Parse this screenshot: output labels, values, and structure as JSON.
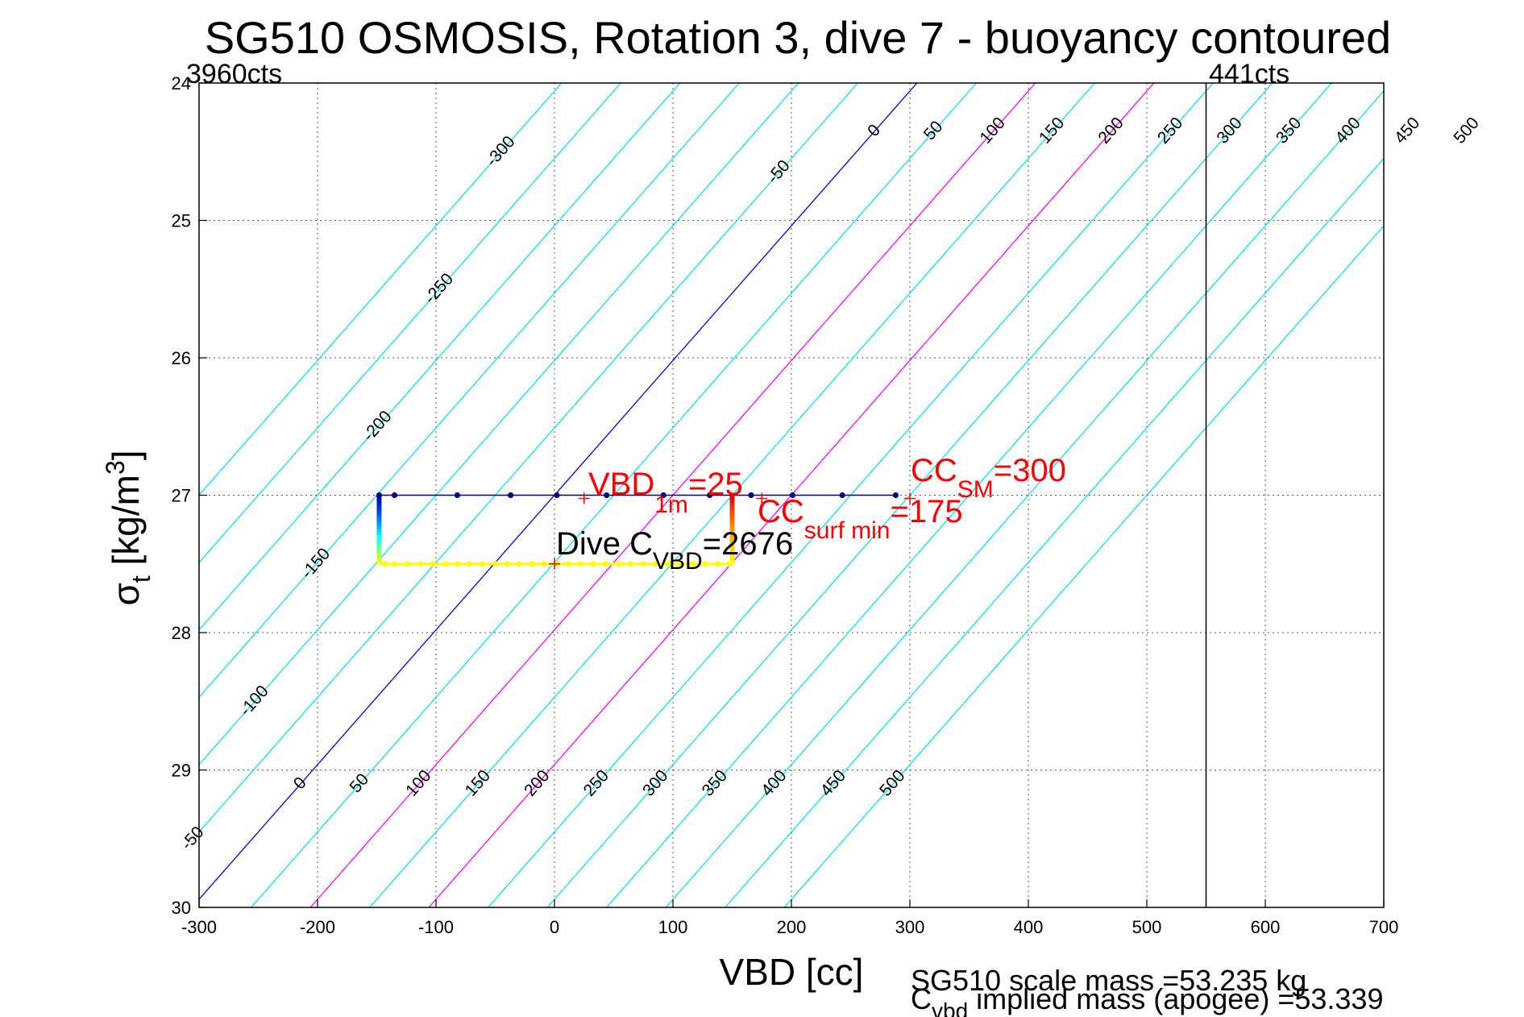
{
  "chart_data": {
    "type": "line",
    "title": "SG510 OSMOSIS, Rotation 3, dive 7 - buoyancy contoured",
    "xlabel": "VBD [cc]",
    "ylabel": "σt [kg/m3]",
    "ylabel_parts": {
      "symbol": "σ",
      "sub": "t",
      "unit_open": " [kg/m",
      "unit_sup": "3",
      "unit_close": "]"
    },
    "xlim": [
      -300,
      700
    ],
    "ylim": [
      24,
      30
    ],
    "y_reversed": true,
    "xticks": [
      -300,
      -200,
      -100,
      0,
      100,
      200,
      300,
      400,
      500,
      600,
      700
    ],
    "yticks": [
      24,
      25,
      26,
      27,
      28,
      29,
      30
    ],
    "grid": true,
    "corner_labels": {
      "left": "3960cts",
      "right": "441cts"
    },
    "vline_x": 550,
    "contour_levels": [
      -300,
      -250,
      -200,
      -150,
      -100,
      -50,
      0,
      50,
      100,
      150,
      200,
      250,
      300,
      350,
      400,
      450,
      500
    ],
    "contour_special": {
      "0": "#0000ff",
      "100": "#ff00ff",
      "200": "#ff00ff"
    },
    "contour_labels_top": [
      "-300",
      "-250",
      "-200",
      "-150",
      "-100",
      "-50",
      "0",
      "50",
      "100",
      "150",
      "200",
      "250",
      "300",
      "350",
      "400",
      "450",
      "500"
    ],
    "contour_labels_bottom": [
      "-50",
      "0",
      "50",
      "100",
      "150",
      "200",
      "250",
      "300",
      "350",
      "400",
      "450",
      "500"
    ],
    "dive_path": {
      "sigma_top": 27.0,
      "sigma_bottom": 27.5,
      "vbd_min": -148,
      "vbd_max": 150,
      "top_line_end": 288,
      "top_points": [
        -148,
        -135,
        -82,
        -37,
        2,
        44,
        92,
        131,
        166,
        201,
        243,
        288
      ],
      "bottom_points": [
        -143,
        -135,
        -124,
        -113,
        -103,
        -92,
        -82,
        -72,
        -61,
        -50,
        -40,
        -30,
        -19,
        -9,
        2,
        12,
        22,
        33,
        43,
        54,
        64,
        75,
        85,
        96,
        106,
        117,
        127,
        138,
        148
      ]
    },
    "markers": {
      "vbd_1m": {
        "x": 25,
        "y": 27.0
      },
      "cc_sm": {
        "x": 300,
        "y": 27.0
      },
      "cc_surf_min": {
        "x": 175,
        "y": 27.0
      },
      "dive_c_vbd": {
        "x": 0,
        "y": 27.5
      }
    },
    "annotations": {
      "vbd_1m": {
        "main": "VBD",
        "sub": "1m",
        "value": "=25"
      },
      "cc_sm": {
        "main": "CC",
        "sub": "SM",
        "value": "=300"
      },
      "cc_surf_min": {
        "main": "CC",
        "sub": "surf min",
        "value": "=175"
      },
      "dive_c_vbd": {
        "main": "Dive C",
        "sub": "VBD",
        "value": "=2676"
      }
    },
    "footer_line1": "SG510 scale mass =53.235 kg",
    "footer_line2": {
      "main": "C",
      "sub": "vbd",
      "value": " implied mass (apogee) =53.339"
    },
    "colors": {
      "contour": "#00e5e5",
      "zero_contour": "#0000ff",
      "magenta_contour": "#ff00ff",
      "annotation": "#ff0000",
      "points": "#00008b",
      "ascent_path": "#ffff00",
      "frame": "#000000",
      "grid": "#555555",
      "background": "#ffffff"
    }
  }
}
